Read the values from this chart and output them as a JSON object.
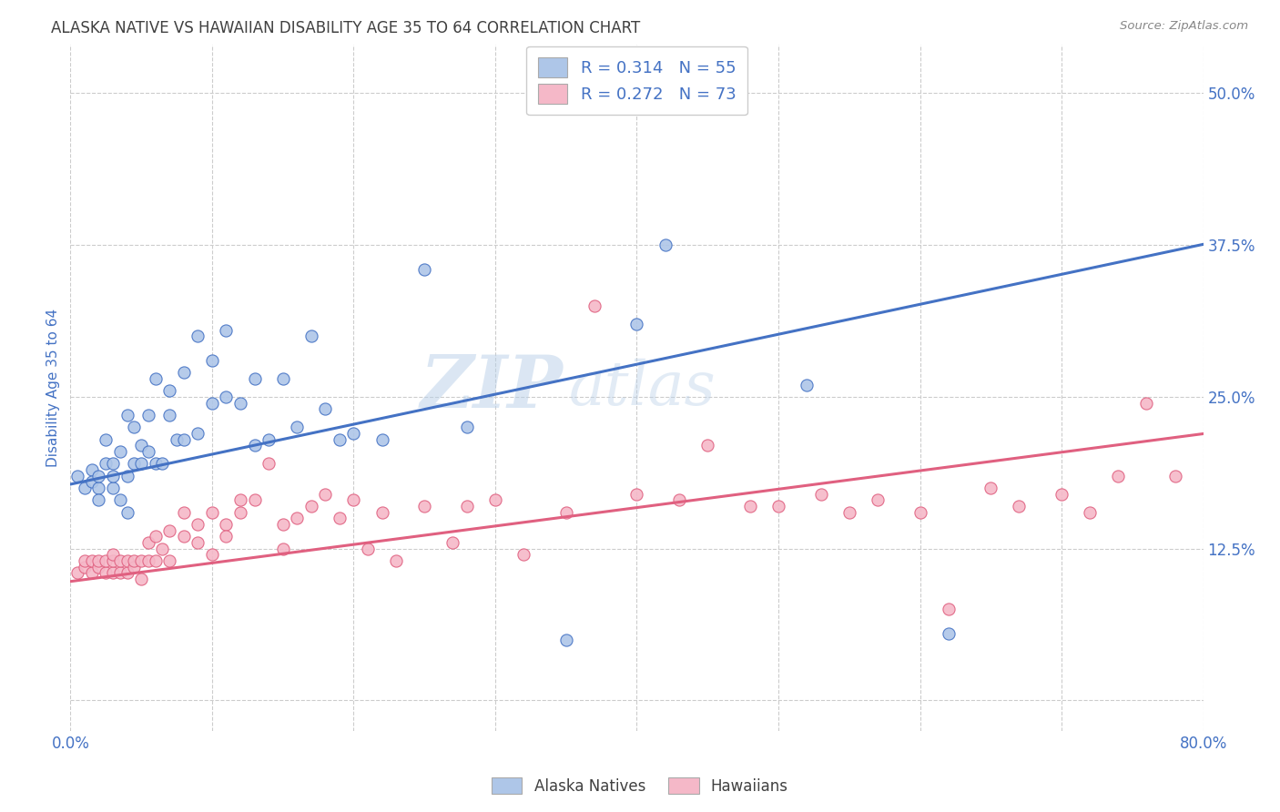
{
  "title": "ALASKA NATIVE VS HAWAIIAN DISABILITY AGE 35 TO 64 CORRELATION CHART",
  "source": "Source: ZipAtlas.com",
  "ylabel": "Disability Age 35 to 64",
  "xlim": [
    0.0,
    0.8
  ],
  "ylim": [
    -0.025,
    0.54
  ],
  "yticks": [
    0.0,
    0.125,
    0.25,
    0.375,
    0.5
  ],
  "ytick_labels": [
    "",
    "12.5%",
    "25.0%",
    "37.5%",
    "50.0%"
  ],
  "xticks": [
    0.0,
    0.1,
    0.2,
    0.3,
    0.4,
    0.5,
    0.6,
    0.7,
    0.8
  ],
  "xtick_labels": [
    "0.0%",
    "",
    "",
    "",
    "",
    "",
    "",
    "",
    "80.0%"
  ],
  "blue_R": 0.314,
  "blue_N": 55,
  "pink_R": 0.272,
  "pink_N": 73,
  "blue_color": "#aec6e8",
  "pink_color": "#f5b8c8",
  "blue_line_color": "#4472c4",
  "pink_line_color": "#e06080",
  "legend_label_blue": "Alaska Natives",
  "legend_label_pink": "Hawaiians",
  "watermark_zip": "ZIP",
  "watermark_atlas": "atlas",
  "background_color": "#ffffff",
  "grid_color": "#cccccc",
  "title_color": "#404040",
  "tick_color": "#4472c4",
  "blue_line_intercept": 0.178,
  "blue_line_slope": 0.247,
  "pink_line_intercept": 0.098,
  "pink_line_slope": 0.152,
  "blue_scatter_x": [
    0.005,
    0.01,
    0.015,
    0.015,
    0.02,
    0.02,
    0.02,
    0.025,
    0.025,
    0.03,
    0.03,
    0.03,
    0.035,
    0.035,
    0.04,
    0.04,
    0.04,
    0.045,
    0.045,
    0.05,
    0.05,
    0.055,
    0.055,
    0.06,
    0.06,
    0.065,
    0.07,
    0.07,
    0.075,
    0.08,
    0.08,
    0.09,
    0.09,
    0.1,
    0.1,
    0.11,
    0.11,
    0.12,
    0.13,
    0.13,
    0.14,
    0.15,
    0.16,
    0.17,
    0.18,
    0.19,
    0.2,
    0.22,
    0.25,
    0.28,
    0.35,
    0.4,
    0.42,
    0.52,
    0.62
  ],
  "blue_scatter_y": [
    0.185,
    0.175,
    0.19,
    0.18,
    0.175,
    0.185,
    0.165,
    0.195,
    0.215,
    0.175,
    0.185,
    0.195,
    0.165,
    0.205,
    0.155,
    0.185,
    0.235,
    0.225,
    0.195,
    0.195,
    0.21,
    0.205,
    0.235,
    0.195,
    0.265,
    0.195,
    0.235,
    0.255,
    0.215,
    0.215,
    0.27,
    0.22,
    0.3,
    0.245,
    0.28,
    0.25,
    0.305,
    0.245,
    0.21,
    0.265,
    0.215,
    0.265,
    0.225,
    0.3,
    0.24,
    0.215,
    0.22,
    0.215,
    0.355,
    0.225,
    0.05,
    0.31,
    0.375,
    0.26,
    0.055
  ],
  "pink_scatter_x": [
    0.005,
    0.01,
    0.01,
    0.015,
    0.015,
    0.02,
    0.02,
    0.025,
    0.025,
    0.03,
    0.03,
    0.03,
    0.035,
    0.035,
    0.04,
    0.04,
    0.045,
    0.045,
    0.05,
    0.05,
    0.055,
    0.055,
    0.06,
    0.06,
    0.065,
    0.07,
    0.07,
    0.08,
    0.08,
    0.09,
    0.09,
    0.1,
    0.1,
    0.11,
    0.11,
    0.12,
    0.12,
    0.13,
    0.14,
    0.15,
    0.15,
    0.16,
    0.17,
    0.18,
    0.19,
    0.2,
    0.21,
    0.22,
    0.23,
    0.25,
    0.27,
    0.28,
    0.3,
    0.32,
    0.35,
    0.37,
    0.4,
    0.43,
    0.45,
    0.48,
    0.5,
    0.53,
    0.55,
    0.57,
    0.6,
    0.62,
    0.65,
    0.67,
    0.7,
    0.72,
    0.74,
    0.76,
    0.78
  ],
  "pink_scatter_y": [
    0.105,
    0.11,
    0.115,
    0.105,
    0.115,
    0.11,
    0.115,
    0.105,
    0.115,
    0.105,
    0.115,
    0.12,
    0.105,
    0.115,
    0.105,
    0.115,
    0.11,
    0.115,
    0.1,
    0.115,
    0.115,
    0.13,
    0.115,
    0.135,
    0.125,
    0.115,
    0.14,
    0.155,
    0.135,
    0.13,
    0.145,
    0.12,
    0.155,
    0.145,
    0.135,
    0.155,
    0.165,
    0.165,
    0.195,
    0.145,
    0.125,
    0.15,
    0.16,
    0.17,
    0.15,
    0.165,
    0.125,
    0.155,
    0.115,
    0.16,
    0.13,
    0.16,
    0.165,
    0.12,
    0.155,
    0.325,
    0.17,
    0.165,
    0.21,
    0.16,
    0.16,
    0.17,
    0.155,
    0.165,
    0.155,
    0.075,
    0.175,
    0.16,
    0.17,
    0.155,
    0.185,
    0.245,
    0.185
  ]
}
